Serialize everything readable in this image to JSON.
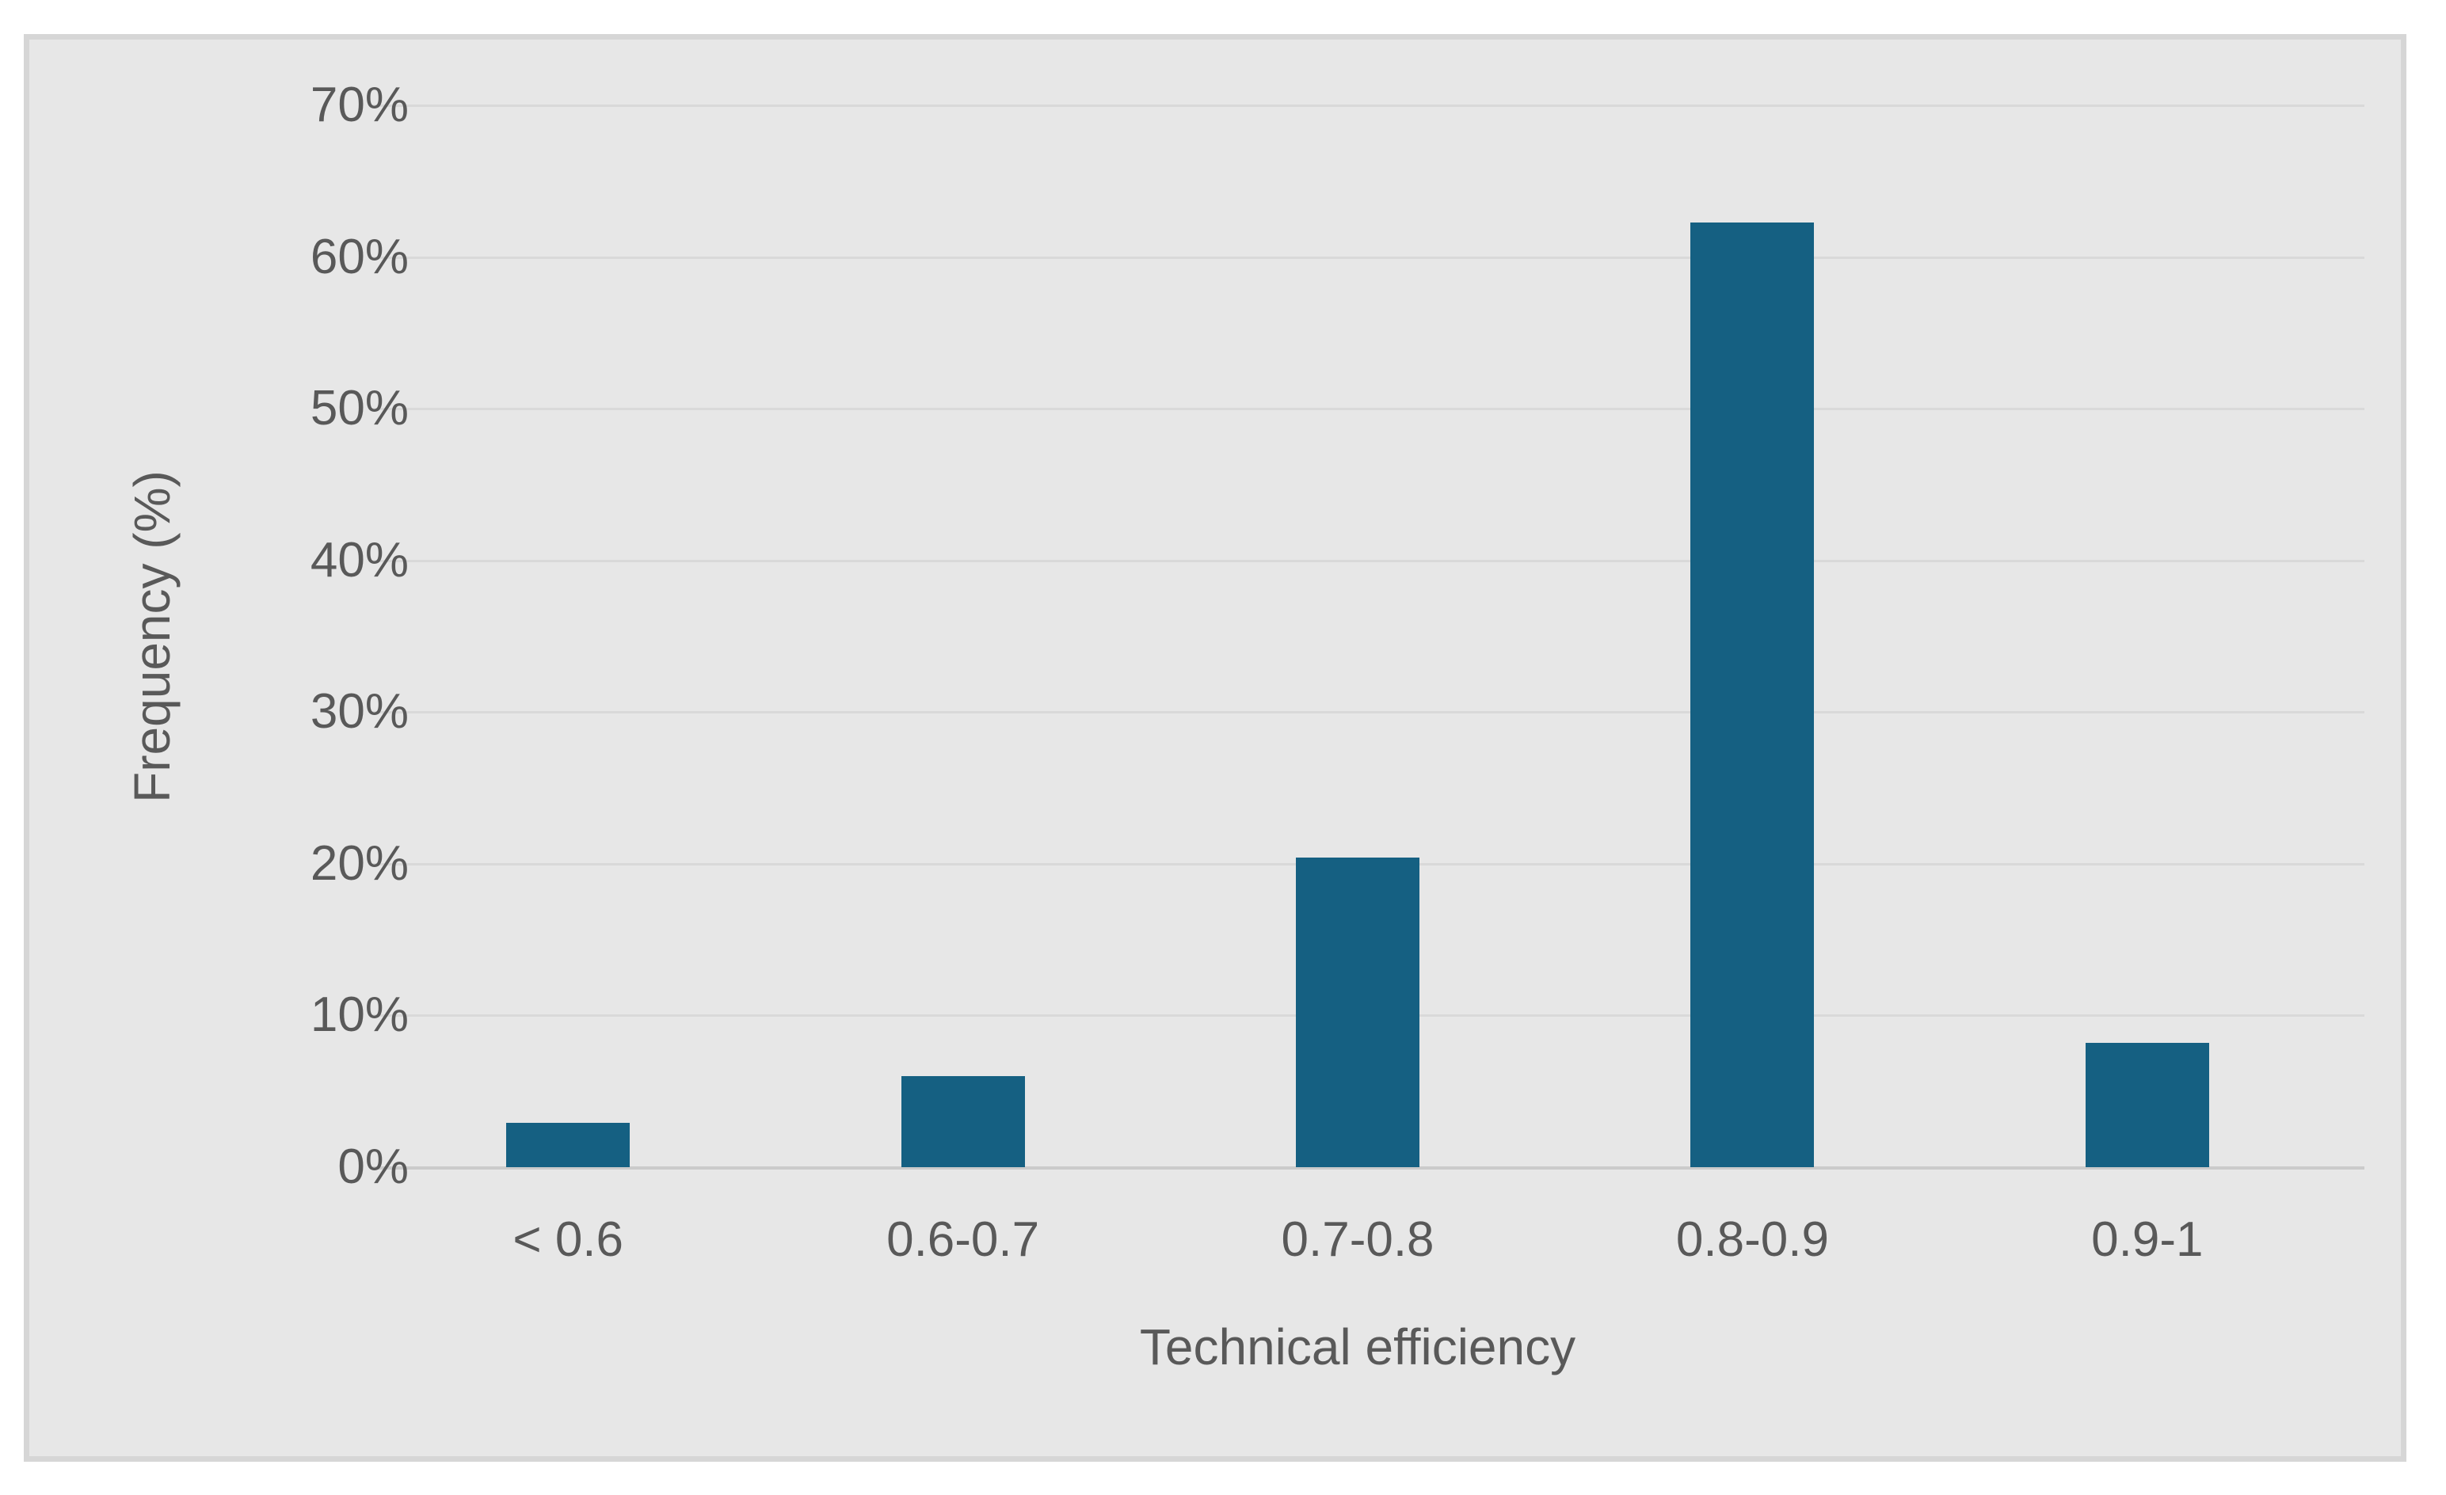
{
  "chart_data": {
    "type": "bar",
    "title": "",
    "xlabel": "Technical efficiency",
    "ylabel": "Frequency (%)",
    "categories": [
      "< 0.6",
      "0.6-0.7",
      "0.7-0.8",
      "0.8-0.9",
      "0.9-1"
    ],
    "values": [
      2.9,
      6.0,
      20.4,
      62.3,
      8.2
    ],
    "ylim": [
      0,
      70
    ],
    "ytick_step": 10,
    "ytick_labels": [
      "0%",
      "10%",
      "20%",
      "30%",
      "40%",
      "50%",
      "60%",
      "70%"
    ],
    "grid": true,
    "legend": "none",
    "bar_color": "#156082"
  },
  "colors": {
    "page_background": "#FFFFFF",
    "plot_background": "#E7E7E7",
    "frame_border": "#D6D6D6",
    "gridline": "#D9D9D9",
    "axis_line": "#CBCBCB",
    "text": "#595959",
    "bar": "#156082"
  }
}
